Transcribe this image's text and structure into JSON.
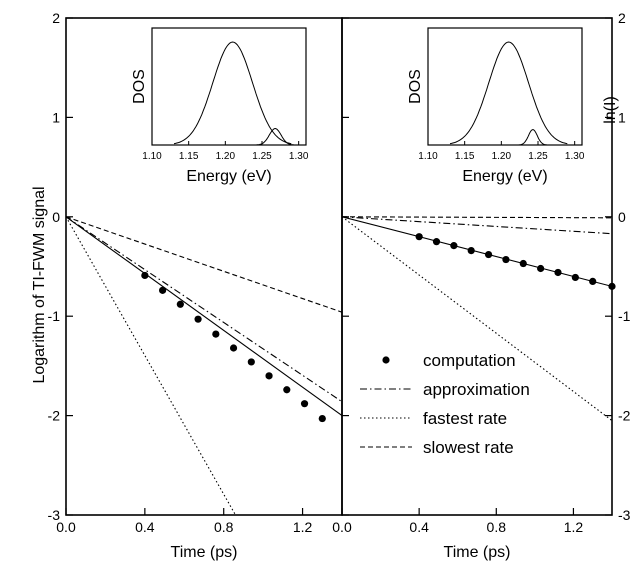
{
  "chart_data": {
    "type": "line",
    "ylabel": "Logarithm of TI-FWM signal",
    "ylabel_right": "ln(I)",
    "ylim": [
      -3,
      2
    ],
    "yticks": [
      -3,
      -2,
      -1,
      0,
      1,
      2
    ],
    "legend_placement": "bottom-right of right panel",
    "legend": [
      {
        "label": "computation",
        "style": "dots"
      },
      {
        "label": "approximation",
        "style": "dash-dot"
      },
      {
        "label": "fastest rate",
        "style": "dotted"
      },
      {
        "label": "slowest rate",
        "style": "dashed"
      }
    ],
    "panels": [
      {
        "xlabel": "Time (ps)",
        "xlim": [
          0,
          1.4
        ],
        "xticks": [
          0.0,
          0.4,
          0.8,
          1.2
        ],
        "series": [
          {
            "name": "computation",
            "style": "dots",
            "x": [
              0.4,
              0.49,
              0.58,
              0.67,
              0.76,
              0.85,
              0.94,
              1.03,
              1.12,
              1.21,
              1.3
            ],
            "y": [
              -0.59,
              -0.74,
              -0.88,
              -1.03,
              -1.18,
              -1.32,
              -1.46,
              -1.6,
              -1.74,
              -1.88,
              -2.03
            ]
          },
          {
            "name": "computation fit",
            "style": "solid",
            "x": [
              0,
              1.4
            ],
            "y": [
              0,
              -2.0
            ]
          },
          {
            "name": "approximation",
            "style": "dash-dot",
            "x": [
              0,
              1.4
            ],
            "y": [
              0,
              -1.86
            ]
          },
          {
            "name": "fastest rate",
            "style": "dotted",
            "x": [
              0,
              0.86
            ],
            "y": [
              0,
              -3.0
            ]
          },
          {
            "name": "slowest rate",
            "style": "dashed",
            "x": [
              0,
              1.4
            ],
            "y": [
              0,
              -0.96
            ]
          }
        ],
        "inset": {
          "ylabel": "DOS",
          "xlabel": "Energy (eV)",
          "xlim": [
            1.1,
            1.31
          ],
          "xticks": [
            "1.10",
            "1.15",
            "1.20",
            "1.25",
            "1.30"
          ],
          "main_peak": {
            "center": 1.21,
            "width": 0.027,
            "height": 1.0
          },
          "side_peak": {
            "center": 1.268,
            "width": 0.008,
            "height": 0.16
          }
        }
      },
      {
        "xlabel": "Time (ps)",
        "xlim": [
          0,
          1.4
        ],
        "xticks": [
          0.0,
          0.4,
          0.8,
          1.2
        ],
        "series": [
          {
            "name": "computation",
            "style": "dots",
            "x": [
              0.4,
              0.49,
              0.58,
              0.67,
              0.76,
              0.85,
              0.94,
              1.03,
              1.12,
              1.21,
              1.3,
              1.4
            ],
            "y": [
              -0.2,
              -0.25,
              -0.29,
              -0.34,
              -0.38,
              -0.43,
              -0.47,
              -0.52,
              -0.56,
              -0.61,
              -0.65,
              -0.7
            ]
          },
          {
            "name": "computation fit",
            "style": "solid",
            "x": [
              0,
              1.4
            ],
            "y": [
              0,
              -0.7
            ]
          },
          {
            "name": "approximation",
            "style": "dash-dot",
            "x": [
              0,
              1.4
            ],
            "y": [
              0,
              -0.17
            ]
          },
          {
            "name": "fastest rate",
            "style": "dotted",
            "x": [
              0,
              1.4
            ],
            "y": [
              0,
              -2.05
            ]
          },
          {
            "name": "slowest rate",
            "style": "dashed",
            "x": [
              0,
              1.4
            ],
            "y": [
              0,
              -0.01
            ]
          }
        ],
        "inset": {
          "ylabel": "DOS",
          "xlabel": "Energy (eV)",
          "xlim": [
            1.1,
            1.31
          ],
          "xticks": [
            "1.10",
            "1.15",
            "1.20",
            "1.25",
            "1.30"
          ],
          "main_peak": {
            "center": 1.21,
            "width": 0.027,
            "height": 1.0
          },
          "side_peak": {
            "center": 1.243,
            "width": 0.006,
            "height": 0.15
          }
        }
      }
    ]
  }
}
